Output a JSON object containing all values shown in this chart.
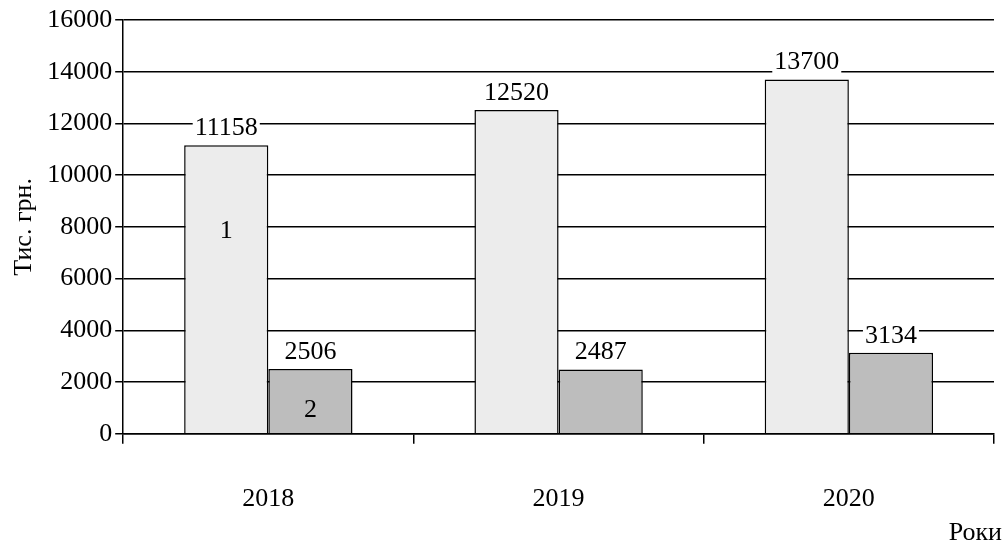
{
  "chart_data": {
    "type": "bar",
    "xlabel": "Роки",
    "ylabel": "Тис. грн.",
    "categories": [
      "2018",
      "2019",
      "2020"
    ],
    "series": [
      {
        "name": "1",
        "color": "#ececec",
        "values": [
          11158,
          12520,
          13700
        ]
      },
      {
        "name": "2",
        "color": "#bdbdbd",
        "values": [
          2506,
          2487,
          3134
        ]
      }
    ],
    "ylim": [
      0,
      16000
    ],
    "yticks": [
      0,
      2000,
      4000,
      6000,
      8000,
      10000,
      12000,
      14000,
      16000
    ],
    "grid": "y",
    "legend": false,
    "data_labels": true
  }
}
